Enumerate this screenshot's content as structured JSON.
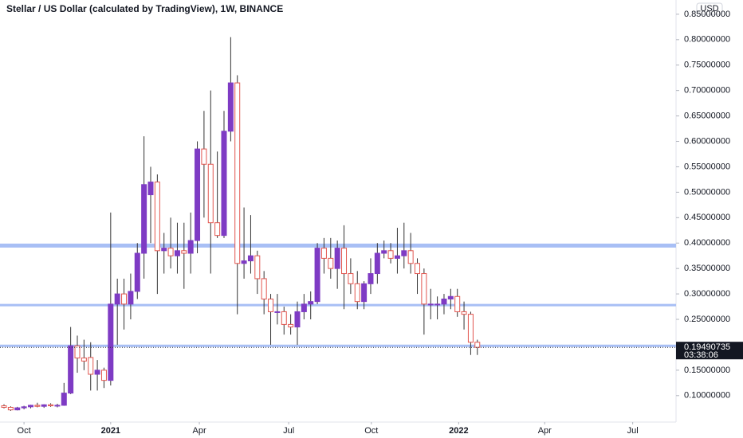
{
  "chart_data": {
    "type": "candlestick",
    "title": "Stellar / US Dollar (calculated by TradingView), 1W, BINANCE",
    "currency": "USD",
    "last_price": 0.19490735,
    "last_price_label": "0.19490735",
    "countdown": "03:38:06",
    "up_color": "#7e3bc4",
    "down_color": "#e2564f",
    "level_color": "#a8bff5",
    "levels": [
      0.395,
      0.278,
      0.198
    ],
    "ylim": [
      0.048,
      0.878
    ],
    "yticks": [
      {
        "value": 0.1,
        "label": "0.10000000"
      },
      {
        "value": 0.15,
        "label": "0.15000000"
      },
      {
        "value": 0.25,
        "label": "0.25000000"
      },
      {
        "value": 0.3,
        "label": "0.30000000"
      },
      {
        "value": 0.35,
        "label": "0.35000000"
      },
      {
        "value": 0.4,
        "label": "0.40000000"
      },
      {
        "value": 0.45,
        "label": "0.45000000"
      },
      {
        "value": 0.5,
        "label": "0.50000000"
      },
      {
        "value": 0.55,
        "label": "0.55000000"
      },
      {
        "value": 0.6,
        "label": "0.60000000"
      },
      {
        "value": 0.65,
        "label": "0.65000000"
      },
      {
        "value": 0.7,
        "label": "0.70000000"
      },
      {
        "value": 0.75,
        "label": "0.75000000"
      },
      {
        "value": 0.8,
        "label": "0.80000000"
      },
      {
        "value": 0.85,
        "label": "0.85000000"
      }
    ],
    "xlim": [
      -0.6,
      100.8
    ],
    "xticks": [
      {
        "value": 3.0,
        "label": "Oct"
      },
      {
        "value": 16.0,
        "label": "2021"
      },
      {
        "value": 29.3,
        "label": "Apr"
      },
      {
        "value": 42.7,
        "label": "Jul"
      },
      {
        "value": 55.1,
        "label": "Oct"
      },
      {
        "value": 68.2,
        "label": "2022"
      },
      {
        "value": 81.1,
        "label": "Apr"
      },
      {
        "value": 94.3,
        "label": "Jul"
      }
    ],
    "open": [
      0.08,
      0.077,
      0.072,
      0.076,
      0.078,
      0.081,
      0.079,
      0.082,
      0.08,
      0.081,
      0.105,
      0.198,
      0.174,
      0.175,
      0.142,
      0.15,
      0.13,
      0.28,
      0.3,
      0.28,
      0.305,
      0.38,
      0.495,
      0.52,
      0.385,
      0.39,
      0.375,
      0.385,
      0.38,
      0.405,
      0.585,
      0.555,
      0.44,
      0.415,
      0.62,
      0.715,
      0.36,
      0.365,
      0.375,
      0.33,
      0.29,
      0.265,
      0.265,
      0.24,
      0.235,
      0.265,
      0.28,
      0.285,
      0.39,
      0.37,
      0.35,
      0.39,
      0.34,
      0.32,
      0.285,
      0.32,
      0.34,
      0.38,
      0.385,
      0.37,
      0.375,
      0.385,
      0.36,
      0.34,
      0.28,
      0.28,
      0.28,
      0.29,
      0.295,
      0.265,
      0.26,
      0.205
    ],
    "high": [
      0.083,
      0.079,
      0.078,
      0.08,
      0.082,
      0.086,
      0.083,
      0.085,
      0.084,
      0.125,
      0.235,
      0.218,
      0.21,
      0.205,
      0.17,
      0.155,
      0.46,
      0.33,
      0.33,
      0.34,
      0.4,
      0.61,
      0.55,
      0.535,
      0.42,
      0.45,
      0.44,
      0.44,
      0.46,
      0.6,
      0.66,
      0.7,
      0.58,
      0.66,
      0.805,
      0.73,
      0.47,
      0.455,
      0.385,
      0.345,
      0.3,
      0.3,
      0.275,
      0.26,
      0.285,
      0.3,
      0.305,
      0.4,
      0.41,
      0.41,
      0.405,
      0.435,
      0.37,
      0.345,
      0.325,
      0.37,
      0.4,
      0.405,
      0.4,
      0.43,
      0.44,
      0.42,
      0.37,
      0.35,
      0.31,
      0.295,
      0.3,
      0.31,
      0.31,
      0.285,
      0.265,
      0.21
    ],
    "low": [
      0.075,
      0.07,
      0.071,
      0.073,
      0.075,
      0.077,
      0.076,
      0.078,
      0.077,
      0.08,
      0.103,
      0.145,
      0.15,
      0.11,
      0.11,
      0.115,
      0.12,
      0.2,
      0.23,
      0.25,
      0.29,
      0.33,
      0.4,
      0.3,
      0.34,
      0.35,
      0.34,
      0.31,
      0.34,
      0.38,
      0.45,
      0.34,
      0.41,
      0.41,
      0.6,
      0.26,
      0.33,
      0.34,
      0.3,
      0.26,
      0.2,
      0.24,
      0.22,
      0.22,
      0.2,
      0.25,
      0.25,
      0.28,
      0.34,
      0.33,
      0.31,
      0.27,
      0.3,
      0.27,
      0.27,
      0.3,
      0.32,
      0.37,
      0.36,
      0.34,
      0.35,
      0.34,
      0.3,
      0.22,
      0.25,
      0.25,
      0.26,
      0.27,
      0.255,
      0.23,
      0.18,
      0.18
    ],
    "close": [
      0.077,
      0.072,
      0.076,
      0.078,
      0.081,
      0.079,
      0.082,
      0.08,
      0.081,
      0.105,
      0.198,
      0.174,
      0.168,
      0.142,
      0.15,
      0.13,
      0.28,
      0.3,
      0.28,
      0.305,
      0.38,
      0.515,
      0.52,
      0.385,
      0.39,
      0.375,
      0.385,
      0.38,
      0.405,
      0.585,
      0.555,
      0.44,
      0.415,
      0.62,
      0.715,
      0.36,
      0.365,
      0.375,
      0.33,
      0.29,
      0.265,
      0.265,
      0.24,
      0.235,
      0.265,
      0.28,
      0.285,
      0.39,
      0.37,
      0.35,
      0.39,
      0.34,
      0.32,
      0.285,
      0.32,
      0.34,
      0.38,
      0.385,
      0.37,
      0.375,
      0.385,
      0.36,
      0.34,
      0.28,
      0.28,
      0.28,
      0.29,
      0.295,
      0.265,
      0.26,
      0.205,
      0.19490735
    ]
  }
}
